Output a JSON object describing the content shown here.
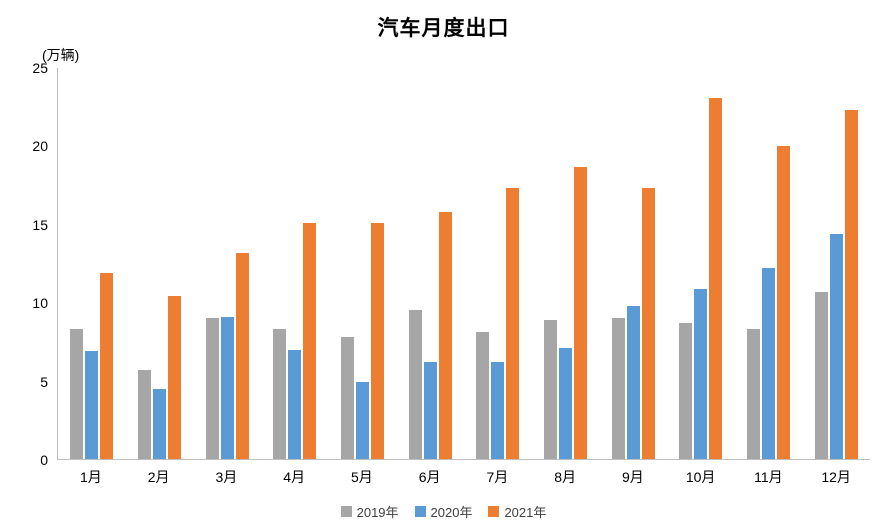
{
  "chart_data": {
    "type": "bar",
    "title": "汽车月度出口",
    "unit_label": "(万辆)",
    "categories": [
      "1月",
      "2月",
      "3月",
      "4月",
      "5月",
      "6月",
      "7月",
      "8月",
      "9月",
      "10月",
      "11月",
      "12月"
    ],
    "series": [
      {
        "name": "2019年",
        "color": "#a6a6a6",
        "values": [
          8.3,
          5.7,
          9.0,
          8.3,
          7.8,
          9.5,
          8.1,
          8.9,
          9.0,
          8.7,
          8.3,
          10.7
        ]
      },
      {
        "name": "2020年",
        "color": "#5b9bd5",
        "values": [
          6.9,
          4.5,
          9.1,
          7.0,
          4.9,
          6.2,
          6.2,
          7.1,
          9.8,
          10.9,
          12.2,
          14.4
        ]
      },
      {
        "name": "2021年",
        "color": "#ed7d31",
        "values": [
          11.9,
          10.4,
          13.2,
          15.1,
          15.1,
          15.8,
          17.3,
          18.7,
          17.3,
          23.1,
          20.0,
          22.3
        ]
      }
    ],
    "ylim": [
      0,
      25
    ],
    "yticks": [
      0,
      5,
      10,
      15,
      20,
      25
    ],
    "grid": false,
    "legend_position": "bottom"
  }
}
